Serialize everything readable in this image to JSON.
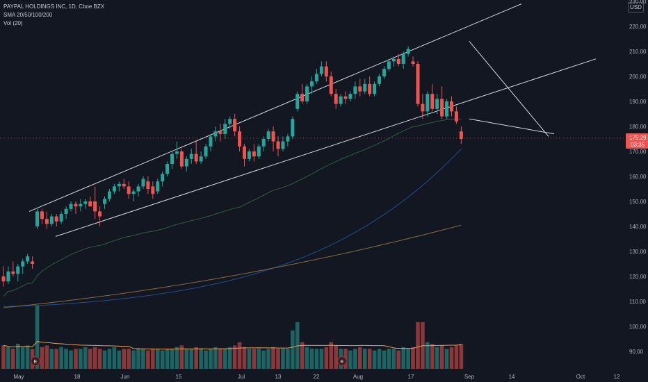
{
  "legend": {
    "symbol_line": "PAYPAL HOLDINGS INC, 1D, Cboe BZX",
    "sma_line": "SMA 20/50/100/200",
    "vol_line": "Vol (20)"
  },
  "currency_button": "USD",
  "price_badge": {
    "price": "175.29",
    "countdown": "03:35",
    "color": "#f05350"
  },
  "colors": {
    "up": "#26a69a",
    "down": "#ef5350",
    "background": "#131722"
  },
  "chart_data": {
    "type": "candlestick",
    "title": "PAYPAL HOLDINGS INC, 1D, Cboe BZX",
    "y_axis": {
      "ticks": [
        90,
        100,
        110,
        120,
        130,
        140,
        150,
        160,
        170,
        180,
        190,
        200,
        210,
        220,
        230
      ],
      "range": [
        82,
        234
      ]
    },
    "x_axis": {
      "ticks": [
        "May",
        "18",
        "Jun",
        "15",
        "Jul",
        "13",
        "22",
        "Aug",
        "17",
        "Sep",
        "14",
        "Oct",
        "12"
      ]
    },
    "candles": [
      [
        120,
        124,
        116,
        118
      ],
      [
        118,
        124,
        117,
        122
      ],
      [
        122,
        126,
        120,
        121
      ],
      [
        121,
        125,
        118,
        124
      ],
      [
        124,
        127,
        121,
        126
      ],
      [
        126,
        129,
        125,
        128
      ],
      [
        126,
        128,
        123,
        125
      ],
      [
        140,
        147,
        139,
        146
      ],
      [
        146,
        147,
        141,
        143
      ],
      [
        143,
        146,
        139,
        141
      ],
      [
        141,
        145,
        140,
        144
      ],
      [
        144,
        145,
        140,
        142
      ],
      [
        142,
        146,
        141,
        145
      ],
      [
        145,
        148,
        143,
        147
      ],
      [
        147,
        150,
        146,
        149
      ],
      [
        149,
        150,
        145,
        148
      ],
      [
        148,
        151,
        146,
        149
      ],
      [
        149,
        151,
        147,
        150
      ],
      [
        150,
        152,
        148,
        148
      ],
      [
        150,
        156,
        143,
        146
      ],
      [
        146,
        148,
        140,
        144
      ],
      [
        149,
        152,
        147,
        151
      ],
      [
        151,
        155,
        150,
        154
      ],
      [
        154,
        157,
        153,
        156
      ],
      [
        156,
        158,
        154,
        157
      ],
      [
        157,
        159,
        155,
        156
      ],
      [
        156,
        158,
        151,
        153
      ],
      [
        153,
        155,
        150,
        154
      ],
      [
        154,
        157,
        152,
        156
      ],
      [
        156,
        160,
        155,
        159
      ],
      [
        158,
        160,
        153,
        155
      ],
      [
        156,
        158,
        151,
        153
      ],
      [
        154,
        159,
        153,
        158
      ],
      [
        158,
        162,
        156,
        161
      ],
      [
        161,
        166,
        160,
        165
      ],
      [
        165,
        170,
        163,
        169
      ],
      [
        169,
        174,
        167,
        170
      ],
      [
        170,
        171,
        163,
        164
      ],
      [
        164,
        168,
        162,
        167
      ],
      [
        167,
        171,
        165,
        169
      ],
      [
        169,
        174,
        165,
        166
      ],
      [
        166,
        170,
        165,
        168
      ],
      [
        168,
        173,
        167,
        172
      ],
      [
        172,
        177,
        170,
        176
      ],
      [
        176,
        180,
        174,
        178
      ],
      [
        178,
        181,
        174,
        177
      ],
      [
        177,
        183,
        175,
        181
      ],
      [
        181,
        184,
        179,
        183
      ],
      [
        183,
        185,
        176,
        178
      ],
      [
        178,
        180,
        170,
        172
      ],
      [
        172,
        173,
        164,
        167
      ],
      [
        167,
        171,
        166,
        170
      ],
      [
        170,
        173,
        166,
        168
      ],
      [
        168,
        173,
        167,
        172
      ],
      [
        172,
        176,
        170,
        175
      ],
      [
        175,
        179,
        174,
        178
      ],
      [
        178,
        180,
        170,
        174
      ],
      [
        174,
        176,
        168,
        171
      ],
      [
        171,
        176,
        170,
        174
      ],
      [
        174,
        177,
        172,
        176
      ],
      [
        176,
        184,
        175,
        183
      ],
      [
        187,
        194,
        186,
        193
      ],
      [
        193,
        197,
        189,
        190
      ],
      [
        190,
        197,
        189,
        196
      ],
      [
        196,
        200,
        193,
        198
      ],
      [
        198,
        203,
        197,
        201
      ],
      [
        201,
        206,
        200,
        204
      ],
      [
        204,
        206,
        198,
        200
      ],
      [
        200,
        202,
        192,
        193
      ],
      [
        193,
        195,
        187,
        189
      ],
      [
        189,
        193,
        188,
        192
      ],
      [
        192,
        194,
        189,
        191
      ],
      [
        191,
        194,
        190,
        193
      ],
      [
        193,
        198,
        191,
        196
      ],
      [
        196,
        199,
        192,
        194
      ],
      [
        194,
        199,
        193,
        197
      ],
      [
        197,
        200,
        192,
        193
      ],
      [
        193,
        198,
        192,
        197
      ],
      [
        197,
        201,
        196,
        200
      ],
      [
        200,
        204,
        199,
        203
      ],
      [
        203,
        207,
        202,
        206
      ],
      [
        206,
        208,
        204,
        207
      ],
      [
        207,
        209,
        204,
        205
      ],
      [
        205,
        210,
        203,
        209
      ],
      [
        209,
        212,
        208,
        211
      ],
      [
        206,
        208,
        204,
        205
      ],
      [
        205,
        206,
        188,
        189
      ],
      [
        189,
        193,
        183,
        186
      ],
      [
        186,
        194,
        184,
        193
      ],
      [
        193,
        197,
        186,
        187
      ],
      [
        187,
        193,
        185,
        191
      ],
      [
        191,
        196,
        183,
        184
      ],
      [
        184,
        191,
        183,
        190
      ],
      [
        190,
        192,
        184,
        186
      ],
      [
        186,
        188,
        181,
        182
      ],
      [
        178,
        180,
        173,
        175
      ]
    ],
    "volume": [
      14,
      13,
      12,
      15,
      13,
      14,
      12,
      38,
      13,
      14,
      12,
      12,
      13,
      12,
      11,
      12,
      12,
      13,
      12,
      13,
      12,
      11,
      12,
      13,
      11,
      12,
      12,
      11,
      12,
      12,
      11,
      12,
      12,
      11,
      12,
      12,
      13,
      14,
      12,
      12,
      13,
      12,
      11,
      12,
      13,
      12,
      12,
      13,
      14,
      16,
      13,
      12,
      12,
      12,
      11,
      12,
      13,
      12,
      12,
      12,
      23,
      28,
      16,
      13,
      12,
      12,
      12,
      13,
      16,
      14,
      12,
      12,
      11,
      12,
      13,
      12,
      12,
      11,
      12,
      11,
      12,
      12,
      11,
      13,
      12,
      13,
      28,
      28,
      16,
      15,
      13,
      14,
      12,
      13,
      14,
      15
    ],
    "overlays": [
      "SMA 20",
      "SMA 50",
      "SMA 100",
      "SMA 200",
      "Vol SMA 20"
    ]
  }
}
